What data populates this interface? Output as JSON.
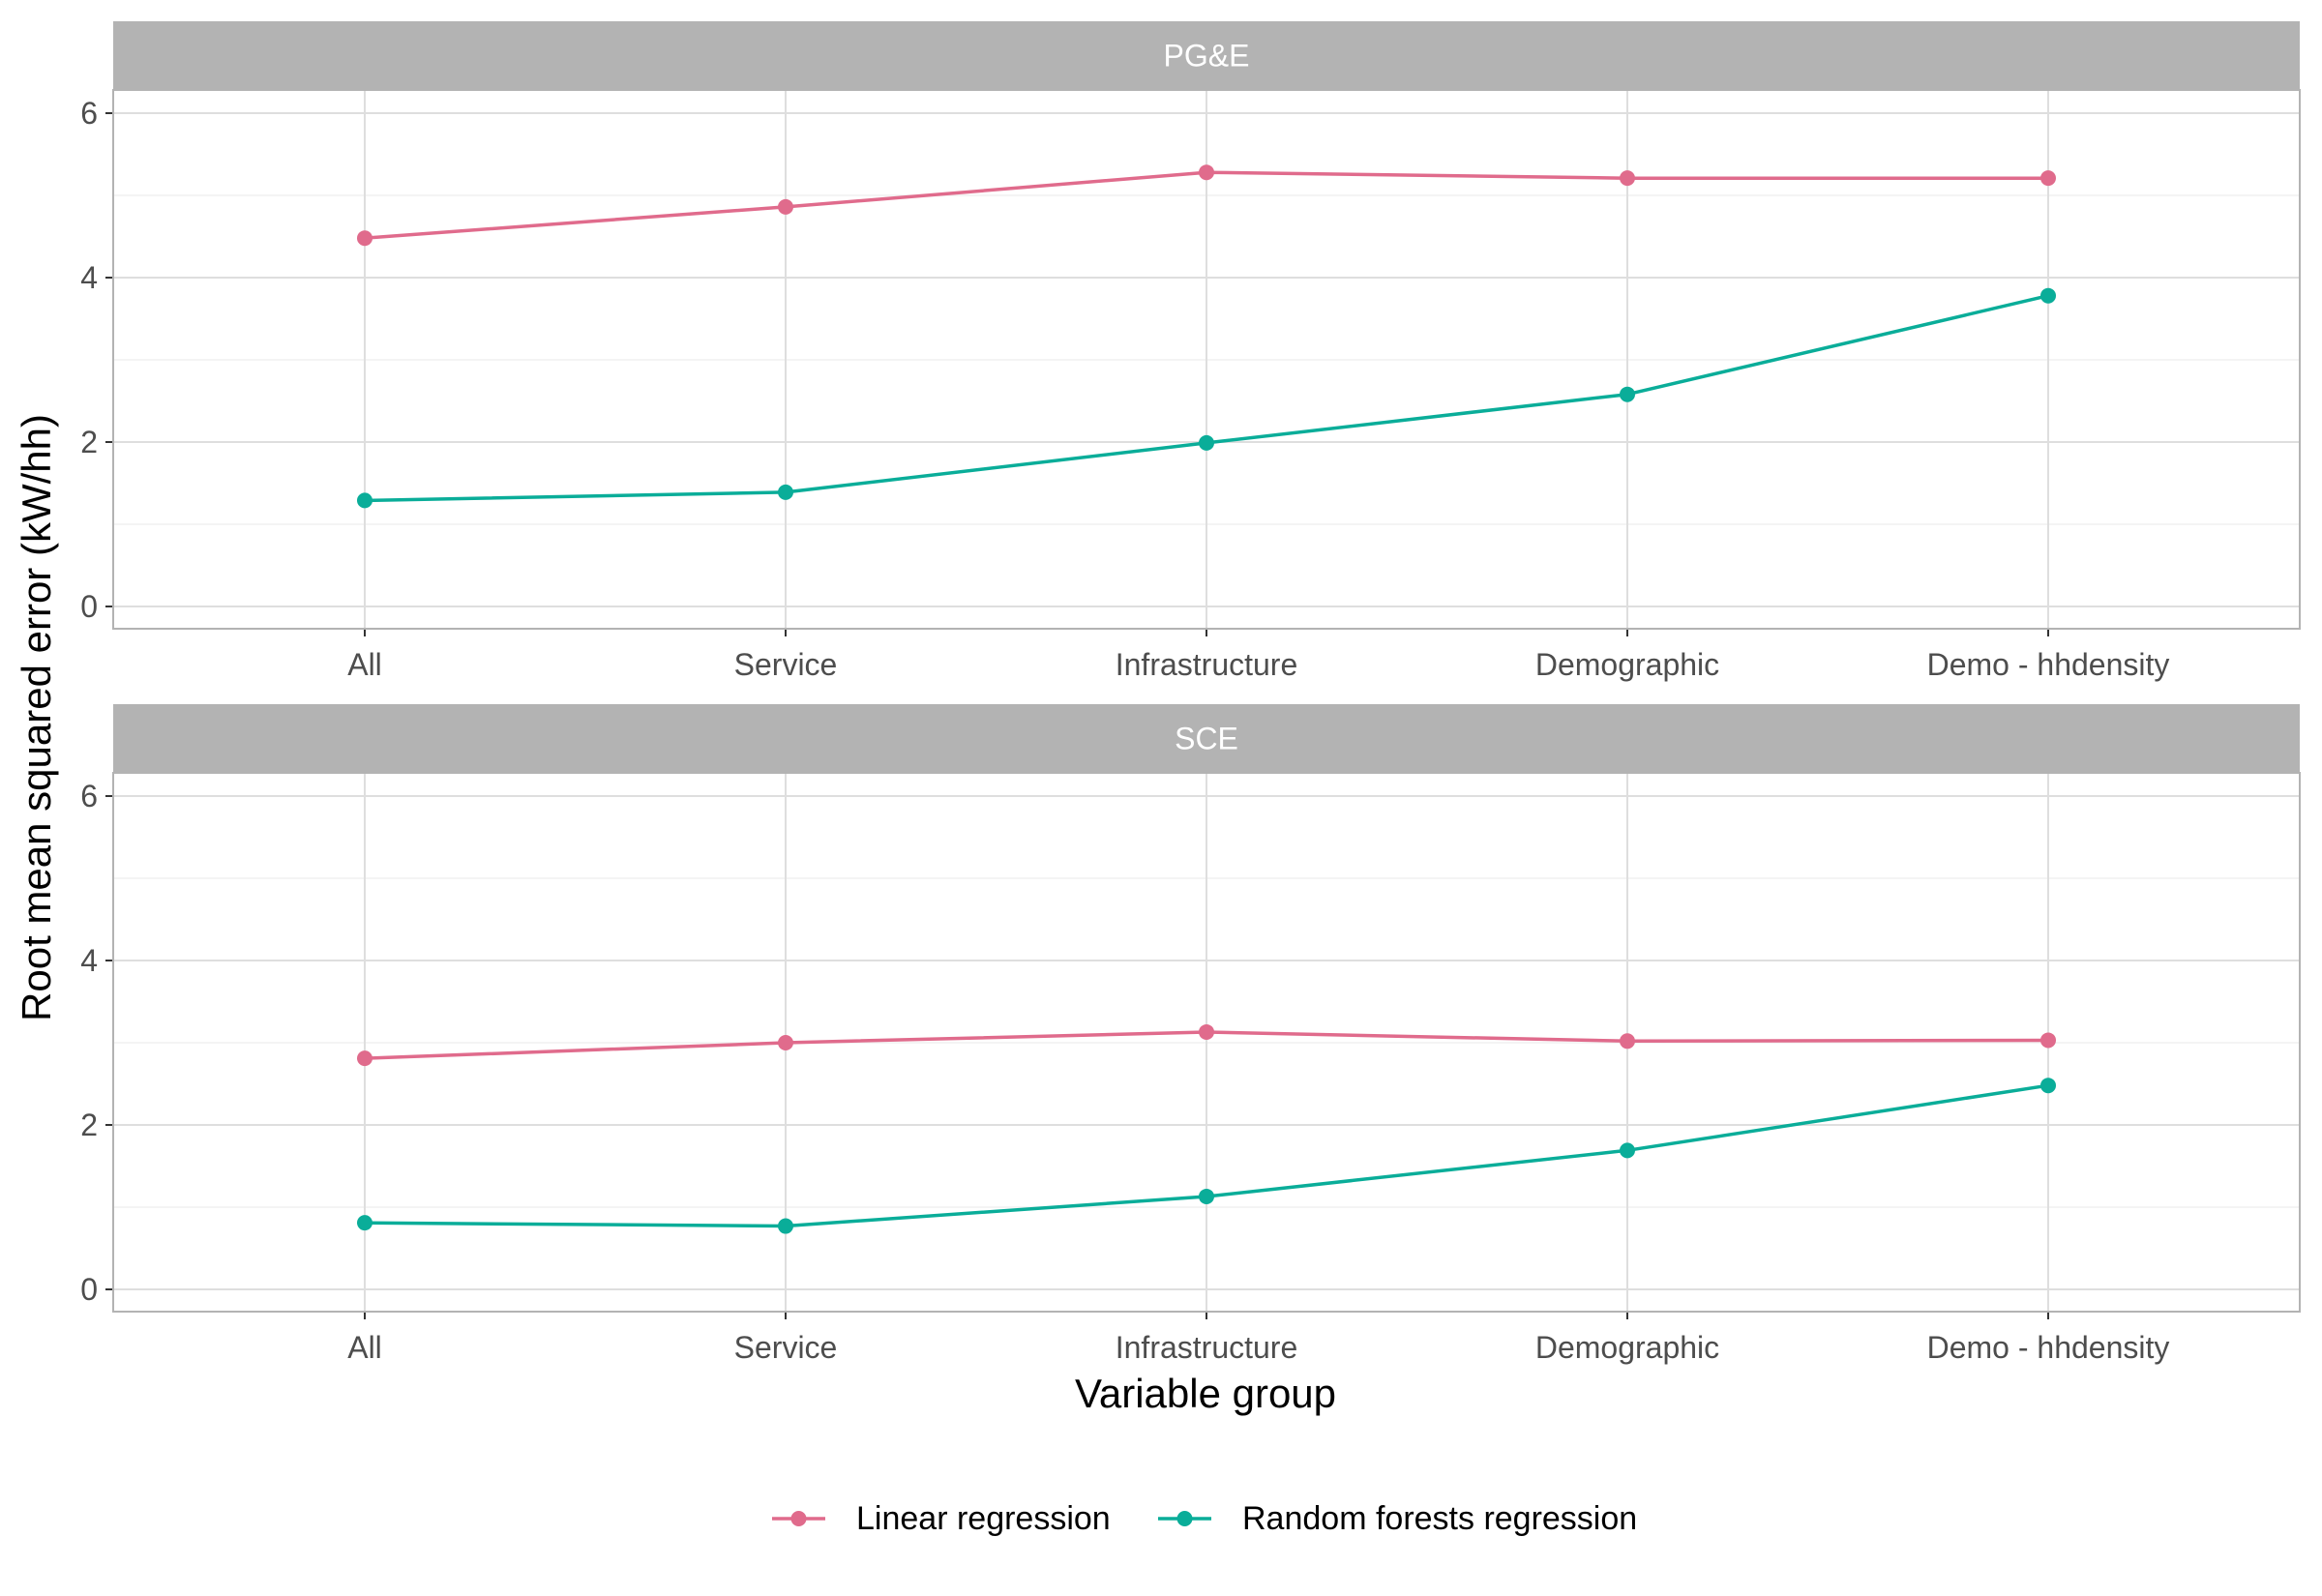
{
  "chart_data": {
    "type": "line",
    "ylabel": "Root mean squared error (kW/hh)",
    "xlabel": "Variable group",
    "categories": [
      "All",
      "Service",
      "Infrastructure",
      "Demographic",
      "Demo - hhdensity"
    ],
    "ylim": [
      0,
      6
    ],
    "yticks": [
      0,
      2,
      4,
      6
    ],
    "grid": true,
    "legend_position": "bottom",
    "colors": {
      "Linear regression": "#E06B8C",
      "Random forests regression": "#0AAD99"
    },
    "panels": [
      {
        "title": "PG&E",
        "series": [
          {
            "name": "Linear regression",
            "values": [
              4.48,
              4.86,
              5.28,
              5.21,
              5.21
            ]
          },
          {
            "name": "Random forests regression",
            "values": [
              1.29,
              1.39,
              1.99,
              2.58,
              3.78
            ]
          }
        ]
      },
      {
        "title": "SCE",
        "series": [
          {
            "name": "Linear regression",
            "values": [
              2.81,
              3.0,
              3.13,
              3.02,
              3.03
            ]
          },
          {
            "name": "Random forests regression",
            "values": [
              0.81,
              0.77,
              1.13,
              1.69,
              2.48
            ]
          }
        ]
      }
    ]
  }
}
